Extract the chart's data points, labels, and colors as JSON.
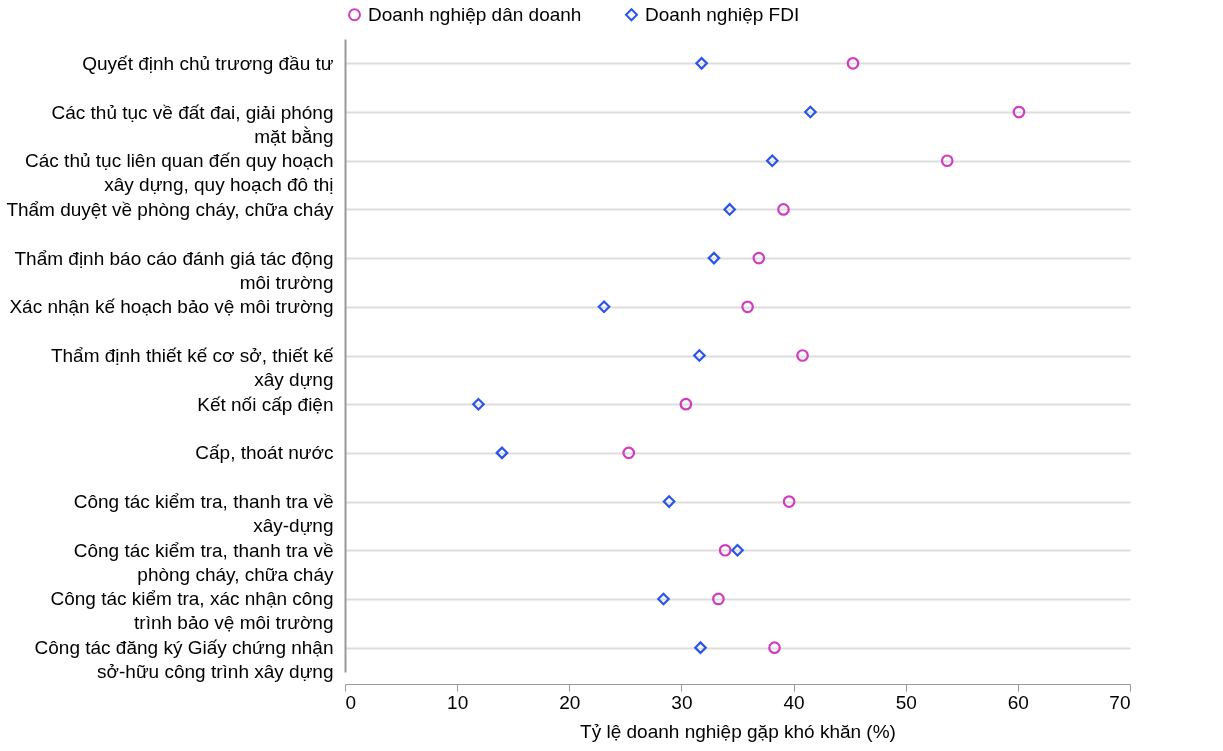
{
  "chart_data": {
    "type": "scatter",
    "xlabel": "Tỷ lệ doanh nghiệp gặp khó khăn (%)",
    "categories": [
      "Quyết định chủ trương đầu tư",
      "Các thủ tục về đất đai, giải phóng\nmặt bằng",
      "Các thủ tục liên quan đến quy hoạch\nxây dựng, quy hoạch đô thị",
      "Thẩm duyệt về phòng cháy, chữa cháy",
      "Thẩm định báo cáo đánh giá tác động\nmôi trường",
      "Xác nhận kế hoạch bảo vệ môi trường",
      "Thẩm định thiết kế cơ sở, thiết kế\nxây dựng",
      "Kết nối cấp điện",
      "Cấp, thoát nước",
      "Công tác kiểm tra, thanh tra về\nxây-dựng",
      "Công tác kiểm tra, thanh tra về\nphòng cháy, chữa cháy",
      "Công tác kiểm tra, xác nhận công\ntrình bảo vệ môi trường",
      "Công tác đăng ký Giấy chứng nhận\nsở-hữu công trình xây dựng"
    ],
    "series": [
      {
        "name": "Doanh nghiệp dân doanh",
        "color": "#d23cbe",
        "marker": "circle",
        "values": [
          45.3,
          60.1,
          53.7,
          39.1,
          36.9,
          35.9,
          40.8,
          30.4,
          25.3,
          39.6,
          33.9,
          33.3,
          38.3
        ]
      },
      {
        "name": "Doanh nghiệp FDI",
        "color": "#2b55e8",
        "marker": "diamond",
        "values": [
          31.8,
          41.5,
          38.1,
          34.3,
          32.9,
          23.1,
          31.6,
          11.9,
          14.0,
          28.9,
          35.0,
          28.4,
          31.7
        ]
      }
    ],
    "orientation": "horizontal",
    "xlim": [
      0,
      70
    ],
    "xticks": [
      0,
      10,
      20,
      30,
      40,
      50,
      60,
      70
    ],
    "grid": "y",
    "legend": "top"
  }
}
